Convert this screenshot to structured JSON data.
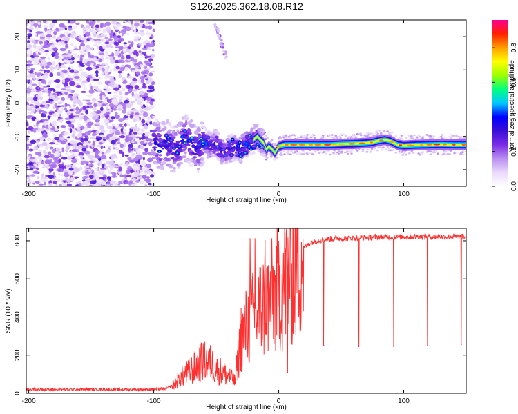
{
  "page_title": "S126.2025.362.18.08.R12",
  "chart_data": [
    {
      "type": "heatmap",
      "title": "S126.2025.362.18.08.R12",
      "xlabel": "Height of straight line (km)",
      "ylabel": "Frequency (Hz)",
      "xlim": [
        -202,
        150
      ],
      "ylim": [
        -25,
        25
      ],
      "xticks": [
        -200,
        -100,
        0,
        100
      ],
      "xtick_labels": [
        "-200",
        "-100",
        "0",
        "100"
      ],
      "yticks": [
        -20,
        -10,
        0,
        10,
        20
      ],
      "ytick_labels": [
        "-20",
        "-10",
        "0",
        "10",
        "20"
      ],
      "colorbar": {
        "label": "Normalized spectral amplitude",
        "range": [
          0,
          0.96
        ],
        "ticks": [
          0,
          0.2,
          0.4,
          0.6,
          0.8
        ],
        "tick_labels": [
          "0.0",
          "0.2",
          "0.4",
          "0.6",
          "0.8"
        ],
        "colors": [
          "#ffffff",
          "#e9d9fb",
          "#b98ef0",
          "#7a2be6",
          "#3a0fd8",
          "#0000ff",
          "#00c8ff",
          "#00ff7f",
          "#9dff00",
          "#ffff00",
          "#ff9f00",
          "#ff2000",
          "#ff0090"
        ]
      },
      "carrier_trace": {
        "x": [
          -100,
          -95,
          -90,
          -85,
          -80,
          -75,
          -70,
          -65,
          -60,
          -55,
          -50,
          -45,
          -40,
          -35,
          -30,
          -25,
          -20,
          -17,
          -15,
          -12,
          -10,
          -8,
          -5,
          -3,
          0,
          5,
          10,
          20,
          30,
          40,
          50,
          60,
          70,
          75,
          80,
          85,
          90,
          95,
          100,
          110,
          120,
          130,
          140,
          150
        ],
        "y": [
          -11,
          -13,
          -12,
          -14,
          -13,
          -10,
          -12,
          -14,
          -11,
          -13,
          -12,
          -15,
          -14,
          -13,
          -14,
          -12,
          -11,
          -10,
          -11,
          -12,
          -14,
          -13,
          -14,
          -15,
          -13,
          -12.5,
          -12.5,
          -12.5,
          -12.5,
          -12.5,
          -12.3,
          -12.2,
          -12,
          -11.8,
          -11.3,
          -11,
          -11.5,
          -12.5,
          -12.8,
          -12.6,
          -12.5,
          -12.4,
          -12.5,
          -12.5
        ]
      },
      "noise_region": {
        "x_range": [
          -202,
          -100
        ],
        "y_range": [
          -25,
          25
        ]
      },
      "descending_trace": {
        "x": [
          -52,
          -42
        ],
        "y": [
          25,
          14
        ]
      }
    },
    {
      "type": "line",
      "xlabel": "Height of straight line (km)",
      "ylabel": "SNR (10 * v/v)",
      "xlim": [
        -202,
        150
      ],
      "ylim": [
        0,
        865
      ],
      "xticks": [
        -200,
        -100,
        0,
        100
      ],
      "xtick_labels": [
        "-200",
        "-100",
        "0",
        "100"
      ],
      "yticks": [
        0,
        200,
        400,
        600,
        800
      ],
      "ytick_labels": [
        "0",
        "200",
        "400",
        "600",
        "800"
      ],
      "color": "#ff3030",
      "envelope": {
        "x": [
          -202,
          -150,
          -100,
          -90,
          -85,
          -80,
          -75,
          -70,
          -65,
          -60,
          -55,
          -50,
          -45,
          -40,
          -35,
          -30,
          -25,
          -20,
          -15,
          -10,
          -5,
          0,
          5,
          10,
          15,
          20,
          25,
          30,
          40,
          60,
          80,
          100,
          120,
          150
        ],
        "y": [
          20,
          20,
          20,
          25,
          40,
          70,
          100,
          120,
          150,
          170,
          160,
          130,
          110,
          90,
          60,
          300,
          350,
          400,
          440,
          470,
          500,
          540,
          580,
          640,
          700,
          760,
          790,
          800,
          810,
          815,
          820,
          820,
          822,
          820
        ]
      },
      "spikes": [
        {
          "x": -23,
          "y": 810
        },
        {
          "x": -19,
          "y": 810
        },
        {
          "x": -11,
          "y": 800
        },
        {
          "x": 7,
          "y": 110
        }
      ],
      "dropouts": [
        {
          "x": 36,
          "y": 250
        },
        {
          "x": 64,
          "y": 245
        },
        {
          "x": 92,
          "y": 245
        },
        {
          "x": 119,
          "y": 250
        },
        {
          "x": 146,
          "y": 255
        }
      ]
    }
  ]
}
